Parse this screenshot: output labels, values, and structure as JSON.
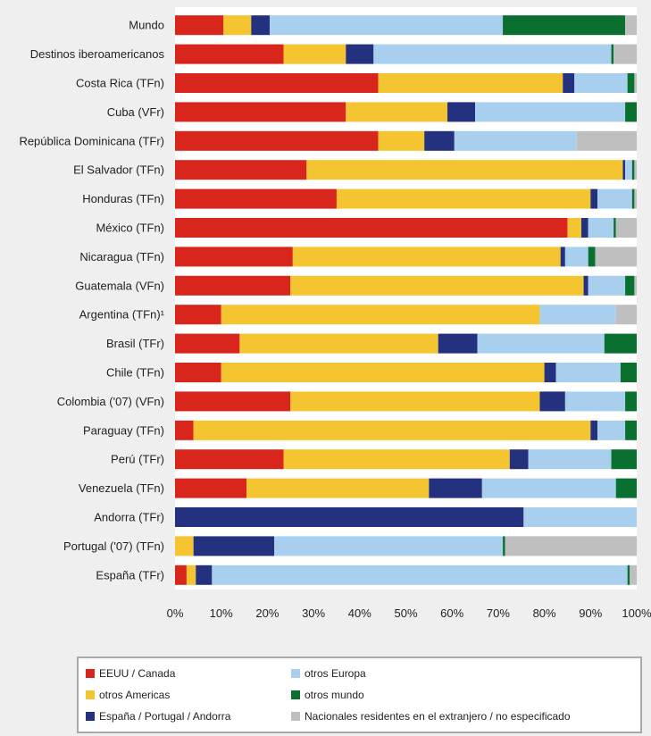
{
  "chart_data": {
    "type": "bar",
    "orientation": "horizontal",
    "stacked": true,
    "percent": true,
    "title": "",
    "xlabel": "",
    "ylabel": "",
    "xlim": [
      0,
      100
    ],
    "x_ticks": [
      "0%",
      "10%",
      "20%",
      "30%",
      "40%",
      "50%",
      "60%",
      "70%",
      "80%",
      "90%",
      "100%"
    ],
    "grid": false,
    "legend_position": "bottom",
    "categories": [
      "Mundo",
      "Destinos iberoamericanos",
      "Costa Rica (TFn)",
      "Cuba (VFr)",
      "República Dominicana (TFr)",
      "El Salvador (TFn)",
      "Honduras (TFn)",
      "México (TFn)",
      "Nicaragua (TFn)",
      "Guatemala (VFn)",
      "Argentina (TFn)¹",
      "Brasil (TFr)",
      "Chile (TFn)",
      "Colombia ('07) (VFn)",
      "Paraguay (TFn)",
      "Perú (TFr)",
      "Venezuela (TFn)",
      "Andorra (TFr)",
      "Portugal ('07) (TFn)",
      "España (TFr)"
    ],
    "series": [
      {
        "name": "EEUU / Canada",
        "color": "#d9261c",
        "values": [
          10.5,
          23.5,
          44,
          37,
          44,
          28.5,
          35,
          85,
          25.5,
          25,
          10,
          14,
          10,
          25,
          4,
          23.5,
          15.5,
          0,
          0,
          2.5
        ]
      },
      {
        "name": "otros Americas",
        "color": "#f4c431",
        "values": [
          6,
          13.5,
          40,
          22,
          10,
          68.5,
          55,
          3,
          58,
          63.5,
          69,
          43,
          70,
          54,
          86,
          49,
          39.5,
          0,
          4,
          2
        ]
      },
      {
        "name": "España / Portugal / Andorra",
        "color": "#23317f",
        "values": [
          4,
          6,
          2.5,
          6,
          6.5,
          0.5,
          1.5,
          1.5,
          1,
          1,
          0,
          8.5,
          2.5,
          5.5,
          1.5,
          4,
          11.5,
          75.5,
          17.5,
          3.5
        ]
      },
      {
        "name": "otros Europa",
        "color": "#a9cfef",
        "values": [
          50.5,
          51.5,
          11.5,
          32.5,
          26.5,
          1.5,
          7.5,
          5.5,
          5,
          8,
          16.5,
          27.5,
          14,
          13,
          6,
          18,
          29,
          24.5,
          49.5,
          90
        ]
      },
      {
        "name": "otros mundo",
        "color": "#0a7030",
        "values": [
          26.5,
          0.5,
          1.5,
          2.5,
          0,
          0.5,
          0.5,
          0.5,
          1.5,
          2,
          0,
          7,
          3.5,
          2.5,
          2.5,
          5.5,
          4.5,
          0,
          0.5,
          0.5
        ]
      },
      {
        "name": "Nacionales residentes en el extranjero / no especificado",
        "color": "#bfbfbf",
        "values": [
          2.5,
          5,
          0.5,
          0,
          13,
          0.5,
          0.5,
          4.5,
          9,
          0.5,
          4.5,
          0,
          0,
          0,
          0,
          0,
          0,
          0,
          28.5,
          1.5
        ]
      }
    ]
  }
}
